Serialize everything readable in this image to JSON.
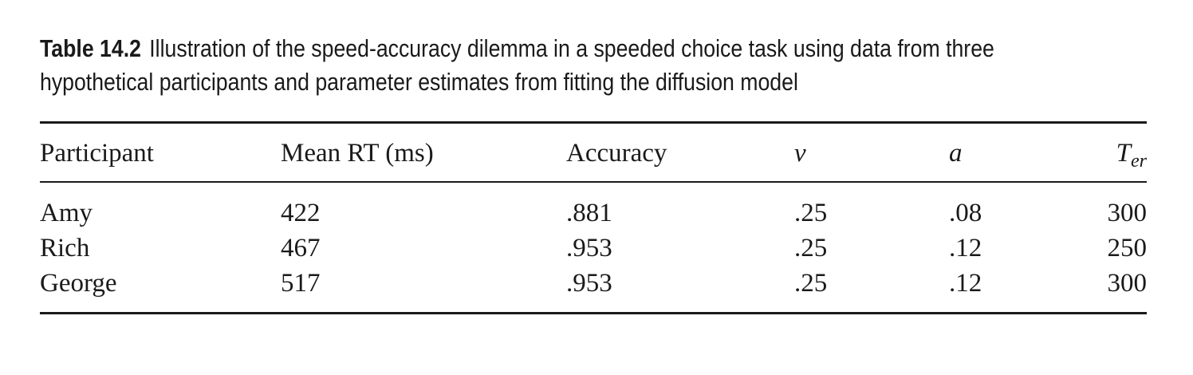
{
  "caption": {
    "label": "Table 14.2",
    "line1": "Illustration of the speed-accuracy dilemma in a speeded choice task using data from three",
    "line2": "hypothetical participants and parameter estimates from fitting the diffusion model"
  },
  "table": {
    "headers": {
      "participant": "Participant",
      "mean_rt": "Mean RT (ms)",
      "accuracy": "Accuracy",
      "v": "v",
      "a": "a",
      "ter_main": "T",
      "ter_sub": "er"
    },
    "rows": [
      {
        "participant": "Amy",
        "mean_rt": "422",
        "accuracy": ".881",
        "v": ".25",
        "a": ".08",
        "ter": "300"
      },
      {
        "participant": "Rich",
        "mean_rt": "467",
        "accuracy": ".953",
        "v": ".25",
        "a": ".12",
        "ter": "250"
      },
      {
        "participant": "George",
        "mean_rt": "517",
        "accuracy": ".953",
        "v": ".25",
        "a": ".12",
        "ter": "300"
      }
    ]
  }
}
